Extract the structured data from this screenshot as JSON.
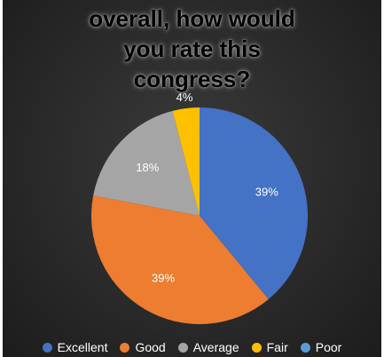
{
  "chart_data": {
    "type": "pie",
    "title": "overall, how would you rate this congress?",
    "title_lines": [
      "overall, how would",
      "you rate this",
      "congress?"
    ],
    "categories": [
      "Excellent",
      "Good",
      "Average",
      "Fair",
      "Poor"
    ],
    "values": [
      39,
      39,
      18,
      4,
      0
    ],
    "data_labels": [
      "39%",
      "39%",
      "18%",
      "4%",
      ""
    ],
    "colors": [
      "#4472c4",
      "#ed7d31",
      "#a5a5a5",
      "#ffc000",
      "#5b9bd5"
    ],
    "legend_position": "bottom",
    "grid": false
  }
}
